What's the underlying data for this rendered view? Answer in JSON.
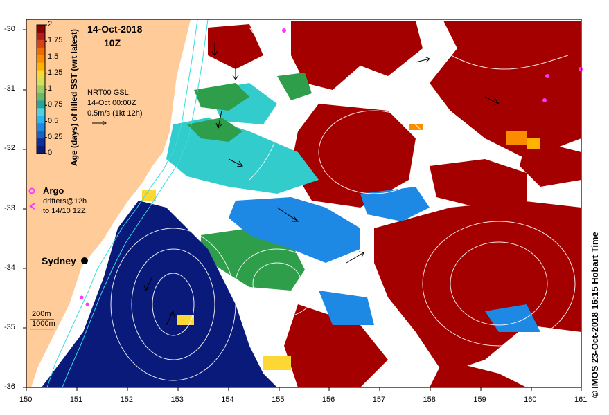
{
  "title": {
    "date": "14-Oct-2018",
    "time": "10Z"
  },
  "product": {
    "line1": "NRT00 GSL",
    "line2": "14-Oct 00:00Z",
    "line3": "0.5m/s (1kt 12h)"
  },
  "colorbar": {
    "title": "Age (days) of filled SST (wrt latest)",
    "ticks": [
      "2",
      "1.75",
      "1.5",
      "1.25",
      "1",
      "0.75",
      "0.5",
      "0.25",
      "0"
    ],
    "colors": [
      "#8b0000",
      "#b71c1c",
      "#d84315",
      "#ef6c00",
      "#fb8c00",
      "#ffb300",
      "#fdd835",
      "#d4e157",
      "#9ccc65",
      "#66bb6a",
      "#26a69a",
      "#4dd0e1",
      "#29b6f6",
      "#1e88e5",
      "#1565c0",
      "#0d2f9e",
      "#0a1a7a"
    ]
  },
  "legend": {
    "argo": "Argo",
    "drifters": "drifters@12h",
    "drifters2": "to 14/10 12Z",
    "argo_color": "#ff33ff"
  },
  "city": {
    "name": "Sydney"
  },
  "depth": {
    "d200": "200m",
    "d1000": "1000m"
  },
  "axes": {
    "x_ticks": [
      "150",
      "151",
      "152",
      "153",
      "154",
      "155",
      "156",
      "157",
      "158",
      "159",
      "160",
      "161"
    ],
    "y_ticks": [
      "-30",
      "-31",
      "-32",
      "-33",
      "-34",
      "-35",
      "-36"
    ]
  },
  "copyright": "© IMOS 23-Oct-2018 16:15 Hobart Time",
  "colors": {
    "land": "#ffcc99",
    "deep": "#0a1a7a",
    "old": "#a50000",
    "cyan": "#33cccc",
    "green": "#2e9e4a",
    "blue": "#1e88e5"
  }
}
